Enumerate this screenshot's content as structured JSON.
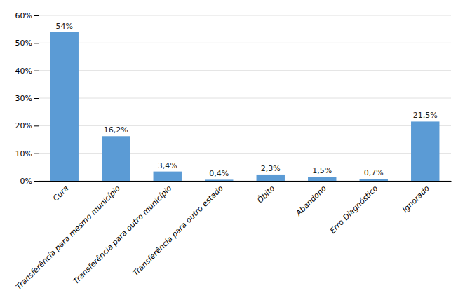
{
  "chart_data": {
    "type": "bar",
    "categories": [
      "Cura",
      "Transferência para mesmo município",
      "Transferência para outro município",
      "Transferência para outro estado",
      "Óbito",
      "Abandono",
      "Erro Diagnóstico",
      "Ignorado"
    ],
    "values": [
      54.0,
      16.2,
      3.4,
      0.4,
      2.3,
      1.5,
      0.7,
      21.5
    ],
    "value_labels": [
      "54%",
      "16,2%",
      "3,4%",
      "0,4%",
      "2,3%",
      "1,5%",
      "0,7%",
      "21,5%"
    ],
    "color": "#5B9BD5",
    "ylim": [
      0,
      60
    ],
    "yticks": [
      {
        "value": 0,
        "label": "0%"
      },
      {
        "value": 10,
        "label": "10%"
      },
      {
        "value": 20,
        "label": "20%"
      },
      {
        "value": 30,
        "label": "30%"
      },
      {
        "value": 40,
        "label": "40%"
      },
      {
        "value": 50,
        "label": "50%"
      },
      {
        "value": 60,
        "label": "60%"
      }
    ],
    "grid": true
  }
}
